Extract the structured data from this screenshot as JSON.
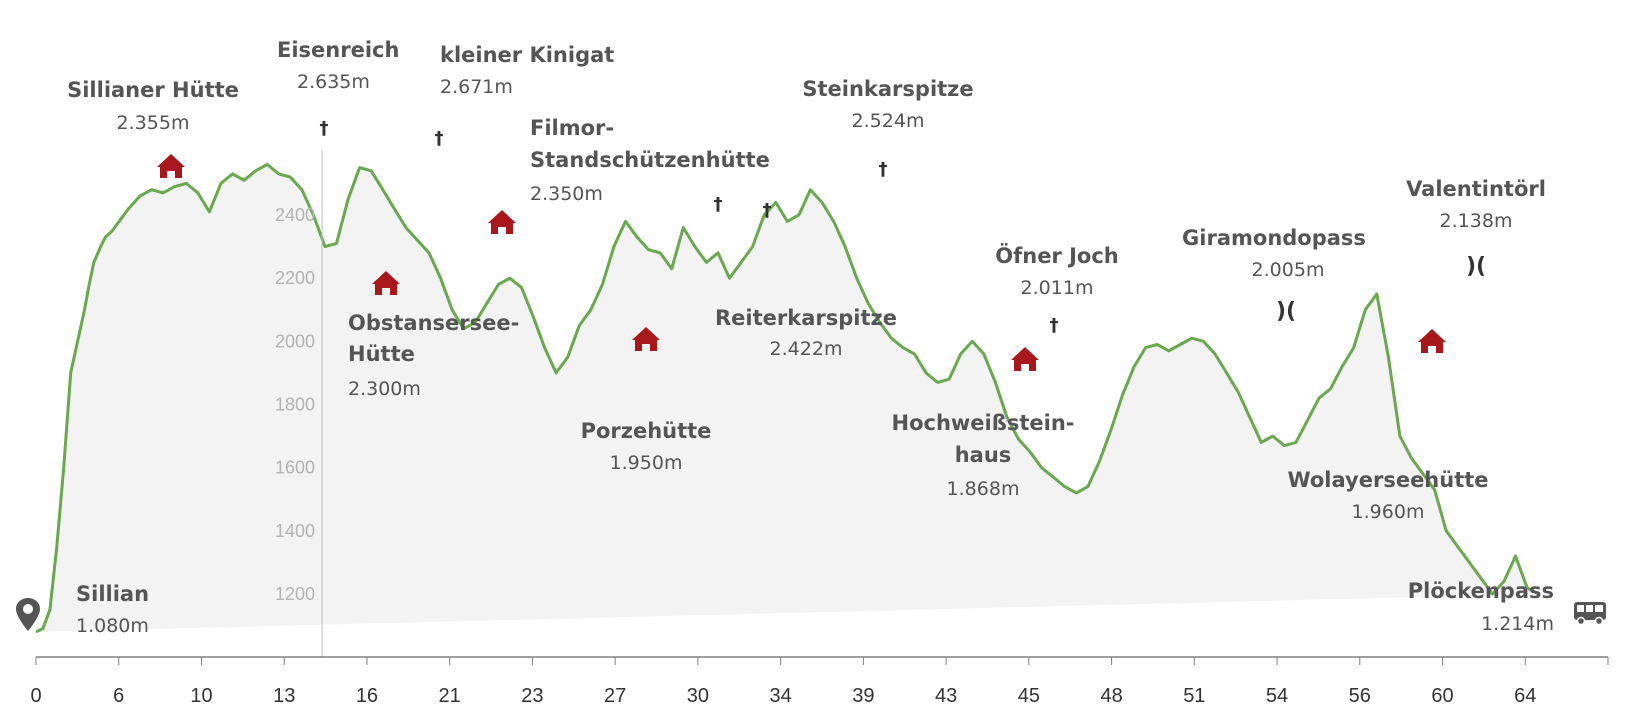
{
  "chart_data": {
    "type": "area",
    "xlabel": "",
    "ylabel": "",
    "xlim": [
      0,
      68
    ],
    "ylim": [
      900,
      2800
    ],
    "grid": false,
    "x_tick_labels": [
      "0",
      "6",
      "10",
      "13",
      "16",
      "21",
      "23",
      "27",
      "30",
      "34",
      "39",
      "43",
      "45",
      "48",
      "51",
      "54",
      "56",
      "60",
      "64"
    ],
    "y_ticks": [
      1200,
      1400,
      1600,
      1800,
      2000,
      2200,
      2400
    ],
    "colors": {
      "line": "#6aa84f",
      "fill": "#f3f3f3",
      "hut": "#a8171c",
      "marker": "#555555"
    },
    "profile": {
      "x": [
        0,
        0.3,
        0.6,
        0.9,
        1.2,
        1.5,
        1.8,
        2.1,
        2.3,
        2.5,
        2.8,
        3,
        3.3,
        3.6,
        4,
        4.5,
        5,
        5.5,
        6,
        6.5,
        7,
        7.5,
        8,
        8.5,
        9,
        9.5,
        10,
        10.5,
        11,
        11.5,
        12,
        12.5,
        13,
        13.5,
        14,
        14.5,
        15,
        15.5,
        16,
        16.5,
        17,
        17.5,
        18,
        18.5,
        19,
        19.5,
        20,
        20.5,
        21,
        21.5,
        22,
        22.5,
        23,
        23.5,
        24,
        24.5,
        25,
        25.5,
        26,
        26.5,
        27,
        27.5,
        28,
        28.5,
        29,
        29.5,
        30,
        30.5,
        31,
        31.5,
        32,
        32.5,
        33,
        33.5,
        34,
        34.5,
        35,
        35.5,
        36,
        36.5,
        37,
        37.5,
        38,
        38.5,
        39,
        39.5,
        40,
        40.5,
        41,
        41.5,
        42,
        42.5,
        43,
        43.5,
        44,
        44.5,
        45,
        45.5,
        46,
        46.5,
        47,
        47.5,
        48,
        48.5,
        49,
        49.5,
        50,
        50.5,
        51,
        51.5,
        52,
        52.5,
        53,
        53.5,
        54,
        54.5,
        55,
        55.5,
        56,
        56.5,
        57,
        57.5,
        58,
        58.5,
        59,
        59.5,
        60,
        60.5,
        61,
        61.5,
        62,
        62.5,
        63,
        63.5,
        64,
        64.5,
        65,
        65.5,
        66,
        66.5,
        67,
        67.5,
        68
      ],
      "elevation": [
        1080,
        1090,
        1150,
        1350,
        1600,
        1900,
        2000,
        2100,
        2180,
        2250,
        2300,
        2330,
        2350,
        2380,
        2420,
        2460,
        2480,
        2470,
        2490,
        2500,
        2470,
        2410,
        2500,
        2530,
        2510,
        2540,
        2560,
        2530,
        2520,
        2480,
        2400,
        2300,
        2310,
        2450,
        2550,
        2540,
        2480,
        2420,
        2360,
        2320,
        2280,
        2200,
        2100,
        2040,
        2060,
        2120,
        2180,
        2200,
        2170,
        2080,
        1980,
        1900,
        1950,
        2050,
        2100,
        2180,
        2300,
        2380,
        2330,
        2290,
        2280,
        2230,
        2360,
        2300,
        2250,
        2280,
        2200,
        2250,
        2300,
        2400,
        2440,
        2380,
        2400,
        2480,
        2440,
        2380,
        2300,
        2200,
        2120,
        2060,
        2010,
        1980,
        1960,
        1900,
        1870,
        1880,
        1960,
        2000,
        1960,
        1870,
        1760,
        1690,
        1650,
        1600,
        1570,
        1540,
        1520,
        1540,
        1620,
        1720,
        1830,
        1920,
        1980,
        1990,
        1970,
        1990,
        2010,
        2000,
        1960,
        1900,
        1840,
        1760,
        1680,
        1700,
        1670,
        1680,
        1750,
        1820,
        1850,
        1920,
        1980,
        2100,
        2150,
        1950,
        1700,
        1630,
        1580,
        1530,
        1400,
        1350,
        1300,
        1250,
        1200,
        1240,
        1320,
        1220,
        1200
      ],
      "note_start": "Sillian",
      "note_end": "Plöckenpass"
    },
    "annotations": [
      {
        "name": "Sillian",
        "elevation_label": "1.080m",
        "km": 0,
        "icon": "start-marker-icon"
      },
      {
        "name": "Sillianer Hütte",
        "elevation_label": "2.355m",
        "km": 8.5,
        "icon": "hut-icon"
      },
      {
        "name": "Eisenreich",
        "elevation_label": "2.635m",
        "km": 14.5,
        "icon": "summit-cross-icon"
      },
      {
        "name": "Obstansersee-Hütte",
        "elevation_label": "2.300m",
        "km": 17,
        "icon": "hut-icon"
      },
      {
        "name": "kleiner Kinigat",
        "elevation_label": "2.671m",
        "km": 20,
        "icon": "summit-cross-icon"
      },
      {
        "name": "Filmor-Standschützenhütte",
        "elevation_label": "2.350m",
        "km": 22.5,
        "icon": "hut-icon"
      },
      {
        "name": "Porzehütte",
        "elevation_label": "1.950m",
        "km": 29,
        "icon": "hut-icon"
      },
      {
        "name": "Reiterkarspitze",
        "elevation_label": "2.422m",
        "km": 33,
        "icon": "summit-cross-icon"
      },
      {
        "name": "Steinkarspitze",
        "elevation_label": "2.524m",
        "km": 40,
        "icon": "summit-cross-icon"
      },
      {
        "name": "Hochweißsteinhaus",
        "elevation_label": "1.868m",
        "km": 45,
        "icon": "hut-icon"
      },
      {
        "name": "Öfner Joch",
        "elevation_label": "2.011m",
        "km": 46.5,
        "icon": "summit-cross-icon"
      },
      {
        "name": "Giramondopass",
        "elevation_label": "2.005m",
        "km": 54,
        "icon": "pass-icon"
      },
      {
        "name": "Wolayerseehütte",
        "elevation_label": "1.960m",
        "km": 59,
        "icon": "hut-icon"
      },
      {
        "name": "Valentintörl",
        "elevation_label": "2.138m",
        "km": 61,
        "icon": "pass-icon"
      },
      {
        "name": "Plöckenpass",
        "elevation_label": "1.214m",
        "km": 68,
        "icon": "bus-icon"
      }
    ]
  }
}
